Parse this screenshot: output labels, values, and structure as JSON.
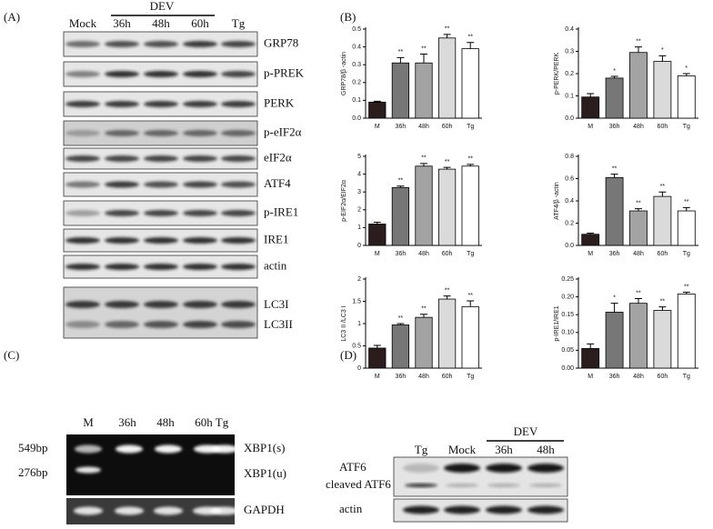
{
  "panel_labels": [
    "(A)",
    "(B)",
    "(C)",
    "(D)"
  ],
  "blot_a": {
    "lanes": [
      "Mock",
      "36h",
      "48h",
      "60h",
      "Tg"
    ],
    "group": "DEV",
    "rows": [
      "GRP78",
      "p-PREK",
      "PERK",
      "p-eIF2α",
      "eIF2α",
      "ATF4",
      "p-IRE1",
      "IRE1",
      "actin"
    ],
    "lc3_labels": [
      "LC3I",
      "LC3II"
    ]
  },
  "chart_data": [
    {
      "type": "bar",
      "ylabel": "GRP78/β -actin",
      "categories": [
        "M",
        "36h",
        "48h",
        "60h",
        "Tg"
      ],
      "values": [
        0.09,
        0.31,
        0.31,
        0.45,
        0.39
      ],
      "errors": [
        0.005,
        0.03,
        0.05,
        0.02,
        0.035
      ],
      "annotations": [
        null,
        "**",
        "**",
        "**",
        "**"
      ],
      "colors": [
        "#2b1d1d",
        "#777777",
        "#a3a3a3",
        "#dadada",
        "#ffffff"
      ],
      "ylim": [
        0,
        0.5
      ],
      "yticks": [
        {
          "value": 0,
          "label": "0.0"
        },
        {
          "value": 0.1,
          "label": "0.1"
        },
        {
          "value": 0.2,
          "label": "0.2"
        },
        {
          "value": 0.3,
          "label": "0.3"
        },
        {
          "value": 0.4,
          "label": "0.4"
        },
        {
          "value": 0.5,
          "label": "0.5"
        }
      ]
    },
    {
      "type": "bar",
      "ylabel": "p-PERK/PERK",
      "categories": [
        "M",
        "36h",
        "48h",
        "60h",
        "Tg"
      ],
      "values": [
        0.095,
        0.18,
        0.295,
        0.255,
        0.19
      ],
      "errors": [
        0.015,
        0.008,
        0.025,
        0.025,
        0.01
      ],
      "annotations": [
        null,
        "*",
        "**",
        "*",
        "*"
      ],
      "colors": [
        "#2b1d1d",
        "#777777",
        "#a3a3a3",
        "#dadada",
        "#ffffff"
      ],
      "ylim": [
        0,
        0.4
      ],
      "yticks": [
        {
          "value": 0,
          "label": "0.0"
        },
        {
          "value": 0.1,
          "label": "0.1"
        },
        {
          "value": 0.2,
          "label": "0.2"
        },
        {
          "value": 0.3,
          "label": "0.3"
        },
        {
          "value": 0.4,
          "label": "0.4"
        }
      ]
    },
    {
      "type": "bar",
      "ylabel": "p-EIF2α/EIF2α",
      "categories": [
        "M",
        "36h",
        "48h",
        "60h",
        "Tg"
      ],
      "values": [
        1.2,
        3.25,
        4.45,
        4.28,
        4.45
      ],
      "errors": [
        0.1,
        0.08,
        0.15,
        0.1,
        0.1
      ],
      "annotations": [
        null,
        "**",
        "**",
        "**",
        "**"
      ],
      "colors": [
        "#2b1d1d",
        "#777777",
        "#a3a3a3",
        "#dadada",
        "#ffffff"
      ],
      "ylim": [
        0,
        5
      ],
      "yticks": [
        0,
        1,
        2,
        3,
        4,
        5
      ]
    },
    {
      "type": "bar",
      "ylabel": "ATF4/β -actin",
      "categories": [
        "M",
        "36h",
        "48h",
        "60h",
        "Tg"
      ],
      "values": [
        0.1,
        0.61,
        0.31,
        0.44,
        0.31
      ],
      "errors": [
        0.01,
        0.03,
        0.02,
        0.04,
        0.03
      ],
      "annotations": [
        null,
        "**",
        "**",
        "**",
        "**"
      ],
      "colors": [
        "#2b1d1d",
        "#777777",
        "#a3a3a3",
        "#dadada",
        "#ffffff"
      ],
      "ylim": [
        0,
        0.8
      ],
      "yticks": [
        {
          "value": 0,
          "label": "0.0"
        },
        0.2,
        0.4,
        0.6,
        0.8
      ]
    },
    {
      "type": "bar",
      "ylabel": "LC3 II /LC3 I",
      "categories": [
        "M",
        "36h",
        "48h",
        "60h",
        "Tg"
      ],
      "values": [
        0.45,
        0.97,
        1.14,
        1.55,
        1.38
      ],
      "errors": [
        0.06,
        0.03,
        0.07,
        0.07,
        0.13
      ],
      "annotations": [
        null,
        "**",
        "**",
        "**",
        "**"
      ],
      "colors": [
        "#2b1d1d",
        "#777777",
        "#a3a3a3",
        "#dadada",
        "#ffffff"
      ],
      "ylim": [
        0,
        2
      ],
      "yticks": [
        0,
        0.5,
        1,
        1.5,
        2
      ]
    },
    {
      "type": "bar",
      "ylabel": "p-IRE1/IRE1",
      "categories": [
        "M",
        "36h",
        "48h",
        "60h",
        "Tg"
      ],
      "values": [
        0.055,
        0.157,
        0.182,
        0.162,
        0.208
      ],
      "errors": [
        0.013,
        0.025,
        0.013,
        0.01,
        0.005
      ],
      "annotations": [
        null,
        "*",
        "**",
        "**",
        "**"
      ],
      "colors": [
        "#2b1d1d",
        "#777777",
        "#a3a3a3",
        "#dadada",
        "#ffffff"
      ],
      "ylim": [
        0,
        0.25
      ],
      "yticks": [
        {
          "value": 0,
          "label": "0.00"
        },
        0.05,
        {
          "value": 0.1,
          "label": "0.10"
        },
        0.15,
        {
          "value": 0.2,
          "label": "0.20"
        },
        0.25
      ]
    }
  ],
  "gel_c": {
    "lanes": [
      "M",
      "36h",
      "48h",
      "60h",
      "Tg"
    ],
    "markers": [
      "549bp",
      "276bp"
    ],
    "bands": [
      "XBP1(s)",
      "XBP1(u)"
    ],
    "control": "GAPDH"
  },
  "blot_d": {
    "lanes": [
      "Tg",
      "Mock",
      "36h",
      "48h"
    ],
    "group": "DEV",
    "rows": [
      "ATF6",
      "cleaved ATF6",
      "actin"
    ]
  }
}
